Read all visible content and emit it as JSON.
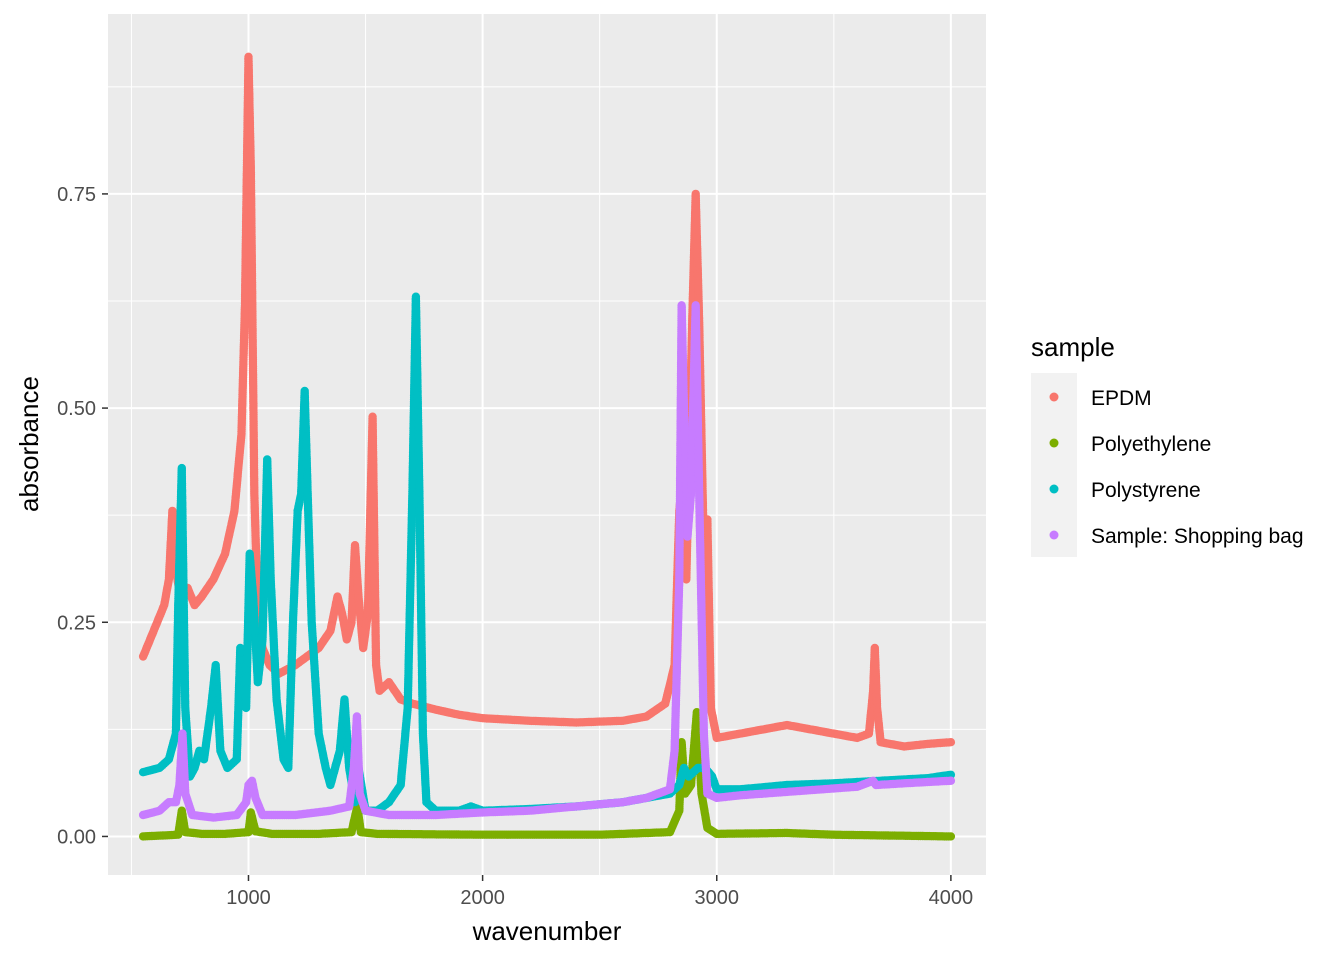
{
  "chart_data": {
    "type": "scatter",
    "xlabel": "wavenumber",
    "ylabel": "absorbance",
    "xlim": [
      400,
      4150
    ],
    "ylim": [
      -0.045,
      0.96
    ],
    "x_ticks": [
      1000,
      2000,
      3000,
      4000
    ],
    "y_ticks": [
      0.0,
      0.25,
      0.5,
      0.75
    ],
    "x_tick_labels": [
      "1000",
      "2000",
      "3000",
      "4000"
    ],
    "y_tick_labels": [
      "0.00",
      "0.25",
      "0.50",
      "0.75"
    ],
    "grid": true,
    "legend": {
      "title": "sample",
      "placement": "right"
    },
    "series": [
      {
        "name": "EPDM",
        "color": "#F8766D",
        "points": [
          [
            550,
            0.21
          ],
          [
            580,
            0.23
          ],
          [
            610,
            0.25
          ],
          [
            640,
            0.27
          ],
          [
            660,
            0.3
          ],
          [
            675,
            0.38
          ],
          [
            690,
            0.31
          ],
          [
            710,
            0.28
          ],
          [
            740,
            0.29
          ],
          [
            770,
            0.27
          ],
          [
            800,
            0.28
          ],
          [
            850,
            0.3
          ],
          [
            900,
            0.33
          ],
          [
            940,
            0.38
          ],
          [
            970,
            0.47
          ],
          [
            985,
            0.62
          ],
          [
            1000,
            0.91
          ],
          [
            1010,
            0.78
          ],
          [
            1025,
            0.4
          ],
          [
            1040,
            0.26
          ],
          [
            1060,
            0.22
          ],
          [
            1090,
            0.2
          ],
          [
            1130,
            0.19
          ],
          [
            1200,
            0.2
          ],
          [
            1300,
            0.22
          ],
          [
            1350,
            0.24
          ],
          [
            1380,
            0.28
          ],
          [
            1400,
            0.26
          ],
          [
            1420,
            0.23
          ],
          [
            1440,
            0.25
          ],
          [
            1455,
            0.34
          ],
          [
            1470,
            0.28
          ],
          [
            1490,
            0.22
          ],
          [
            1510,
            0.26
          ],
          [
            1530,
            0.49
          ],
          [
            1545,
            0.2
          ],
          [
            1560,
            0.17
          ],
          [
            1600,
            0.18
          ],
          [
            1650,
            0.16
          ],
          [
            1700,
            0.155
          ],
          [
            1800,
            0.148
          ],
          [
            1900,
            0.142
          ],
          [
            2000,
            0.138
          ],
          [
            2200,
            0.135
          ],
          [
            2400,
            0.133
          ],
          [
            2600,
            0.135
          ],
          [
            2700,
            0.14
          ],
          [
            2780,
            0.155
          ],
          [
            2820,
            0.2
          ],
          [
            2840,
            0.38
          ],
          [
            2855,
            0.42
          ],
          [
            2870,
            0.3
          ],
          [
            2895,
            0.6
          ],
          [
            2910,
            0.75
          ],
          [
            2925,
            0.6
          ],
          [
            2945,
            0.33
          ],
          [
            2960,
            0.37
          ],
          [
            2975,
            0.15
          ],
          [
            3000,
            0.115
          ],
          [
            3100,
            0.12
          ],
          [
            3200,
            0.125
          ],
          [
            3300,
            0.13
          ],
          [
            3400,
            0.125
          ],
          [
            3500,
            0.12
          ],
          [
            3600,
            0.115
          ],
          [
            3650,
            0.12
          ],
          [
            3668,
            0.17
          ],
          [
            3675,
            0.22
          ],
          [
            3685,
            0.15
          ],
          [
            3700,
            0.11
          ],
          [
            3800,
            0.105
          ],
          [
            3900,
            0.108
          ],
          [
            4000,
            0.11
          ]
        ]
      },
      {
        "name": "Polyethylene",
        "color": "#7CAE00",
        "points": [
          [
            550,
            0.0
          ],
          [
            700,
            0.002
          ],
          [
            715,
            0.03
          ],
          [
            730,
            0.005
          ],
          [
            800,
            0.003
          ],
          [
            900,
            0.003
          ],
          [
            1000,
            0.005
          ],
          [
            1010,
            0.028
          ],
          [
            1030,
            0.006
          ],
          [
            1100,
            0.003
          ],
          [
            1300,
            0.003
          ],
          [
            1440,
            0.005
          ],
          [
            1465,
            0.035
          ],
          [
            1480,
            0.005
          ],
          [
            1550,
            0.003
          ],
          [
            2000,
            0.002
          ],
          [
            2500,
            0.002
          ],
          [
            2800,
            0.005
          ],
          [
            2840,
            0.03
          ],
          [
            2850,
            0.11
          ],
          [
            2865,
            0.05
          ],
          [
            2890,
            0.06
          ],
          [
            2915,
            0.145
          ],
          [
            2935,
            0.05
          ],
          [
            2960,
            0.01
          ],
          [
            3000,
            0.003
          ],
          [
            3300,
            0.004
          ],
          [
            3500,
            0.002
          ],
          [
            4000,
            0.0
          ]
        ]
      },
      {
        "name": "Polystyrene",
        "color": "#00BFC4",
        "points": [
          [
            550,
            0.075
          ],
          [
            620,
            0.08
          ],
          [
            660,
            0.09
          ],
          [
            690,
            0.12
          ],
          [
            700,
            0.27
          ],
          [
            715,
            0.43
          ],
          [
            730,
            0.15
          ],
          [
            750,
            0.07
          ],
          [
            770,
            0.08
          ],
          [
            790,
            0.1
          ],
          [
            810,
            0.09
          ],
          [
            840,
            0.15
          ],
          [
            860,
            0.2
          ],
          [
            880,
            0.1
          ],
          [
            910,
            0.08
          ],
          [
            950,
            0.09
          ],
          [
            965,
            0.22
          ],
          [
            975,
            0.2
          ],
          [
            990,
            0.15
          ],
          [
            1005,
            0.33
          ],
          [
            1020,
            0.28
          ],
          [
            1040,
            0.18
          ],
          [
            1060,
            0.23
          ],
          [
            1080,
            0.44
          ],
          [
            1095,
            0.3
          ],
          [
            1120,
            0.16
          ],
          [
            1150,
            0.09
          ],
          [
            1170,
            0.08
          ],
          [
            1190,
            0.25
          ],
          [
            1210,
            0.38
          ],
          [
            1225,
            0.4
          ],
          [
            1240,
            0.52
          ],
          [
            1255,
            0.38
          ],
          [
            1270,
            0.25
          ],
          [
            1300,
            0.12
          ],
          [
            1330,
            0.08
          ],
          [
            1350,
            0.06
          ],
          [
            1370,
            0.08
          ],
          [
            1390,
            0.1
          ],
          [
            1410,
            0.16
          ],
          [
            1430,
            0.08
          ],
          [
            1455,
            0.04
          ],
          [
            1470,
            0.08
          ],
          [
            1500,
            0.03
          ],
          [
            1550,
            0.03
          ],
          [
            1600,
            0.04
          ],
          [
            1650,
            0.06
          ],
          [
            1680,
            0.15
          ],
          [
            1700,
            0.4
          ],
          [
            1715,
            0.63
          ],
          [
            1730,
            0.4
          ],
          [
            1745,
            0.12
          ],
          [
            1760,
            0.04
          ],
          [
            1800,
            0.03
          ],
          [
            1900,
            0.03
          ],
          [
            1950,
            0.035
          ],
          [
            2000,
            0.03
          ],
          [
            2200,
            0.032
          ],
          [
            2400,
            0.035
          ],
          [
            2600,
            0.04
          ],
          [
            2800,
            0.05
          ],
          [
            2840,
            0.06
          ],
          [
            2860,
            0.08
          ],
          [
            2880,
            0.07
          ],
          [
            2920,
            0.08
          ],
          [
            2950,
            0.08
          ],
          [
            2980,
            0.07
          ],
          [
            3000,
            0.055
          ],
          [
            3100,
            0.055
          ],
          [
            3300,
            0.06
          ],
          [
            3500,
            0.062
          ],
          [
            3700,
            0.065
          ],
          [
            3900,
            0.068
          ],
          [
            4000,
            0.072
          ]
        ]
      },
      {
        "name": "Sample: Shopping bag",
        "color": "#C77CFF",
        "points": [
          [
            550,
            0.025
          ],
          [
            620,
            0.03
          ],
          [
            660,
            0.04
          ],
          [
            690,
            0.04
          ],
          [
            705,
            0.06
          ],
          [
            718,
            0.12
          ],
          [
            730,
            0.05
          ],
          [
            760,
            0.025
          ],
          [
            850,
            0.022
          ],
          [
            950,
            0.025
          ],
          [
            990,
            0.04
          ],
          [
            1000,
            0.06
          ],
          [
            1015,
            0.065
          ],
          [
            1030,
            0.045
          ],
          [
            1060,
            0.025
          ],
          [
            1200,
            0.025
          ],
          [
            1350,
            0.03
          ],
          [
            1430,
            0.035
          ],
          [
            1450,
            0.08
          ],
          [
            1463,
            0.14
          ],
          [
            1475,
            0.05
          ],
          [
            1500,
            0.03
          ],
          [
            1600,
            0.025
          ],
          [
            1800,
            0.025
          ],
          [
            2000,
            0.028
          ],
          [
            2200,
            0.03
          ],
          [
            2400,
            0.035
          ],
          [
            2600,
            0.04
          ],
          [
            2700,
            0.045
          ],
          [
            2800,
            0.055
          ],
          [
            2820,
            0.1
          ],
          [
            2840,
            0.3
          ],
          [
            2850,
            0.62
          ],
          [
            2860,
            0.5
          ],
          [
            2875,
            0.35
          ],
          [
            2890,
            0.4
          ],
          [
            2910,
            0.62
          ],
          [
            2925,
            0.4
          ],
          [
            2945,
            0.12
          ],
          [
            2960,
            0.05
          ],
          [
            3000,
            0.045
          ],
          [
            3100,
            0.048
          ],
          [
            3300,
            0.052
          ],
          [
            3500,
            0.056
          ],
          [
            3600,
            0.058
          ],
          [
            3668,
            0.065
          ],
          [
            3680,
            0.06
          ],
          [
            3800,
            0.062
          ],
          [
            4000,
            0.065
          ]
        ]
      }
    ]
  }
}
